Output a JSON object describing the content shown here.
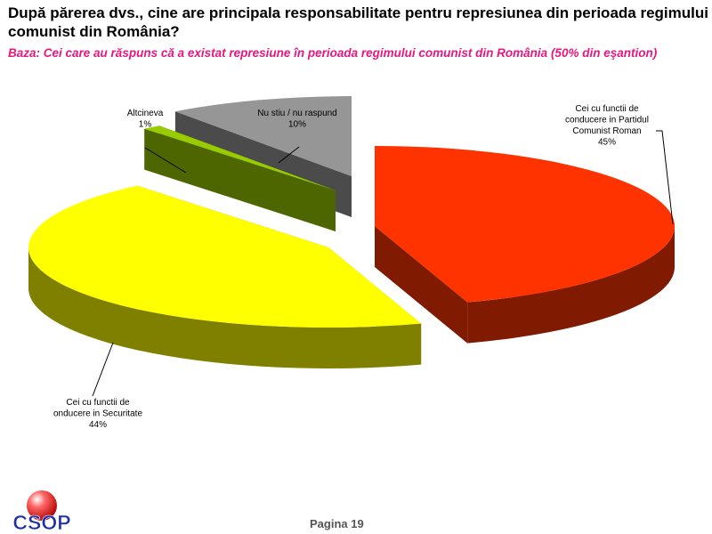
{
  "header": {
    "question": "După părerea dvs., cine are principala responsabilitate pentru represiunea din perioada regimului comunist din România?",
    "base": "Baza: Cei care au răspuns că a existat represiune în perioada regimului comunist din România (50% din eşantion)"
  },
  "colors": {
    "base_text": "#e8177f"
  },
  "chart_data": {
    "type": "pie",
    "style": "3d-exploded",
    "slices": [
      {
        "label_lines": [
          "Cei cu functii de",
          "conducere in Partidul",
          "Comunist Roman"
        ],
        "value": 45,
        "value_label": "45%",
        "color": "#ff3300"
      },
      {
        "label_lines": [
          "Cei cu functii de",
          "onducere in Securitate"
        ],
        "value": 44,
        "value_label": "44%",
        "color": "#ffff00"
      },
      {
        "label_lines": [
          "Altcineva"
        ],
        "value": 1,
        "value_label": "1%",
        "color": "#99cc00"
      },
      {
        "label_lines": [
          "Nu stiu / nu raspund"
        ],
        "value": 10,
        "value_label": "10%",
        "color": "#969696"
      }
    ]
  },
  "footer": {
    "page": "Pagina  19",
    "logo_text": "CSOP"
  }
}
